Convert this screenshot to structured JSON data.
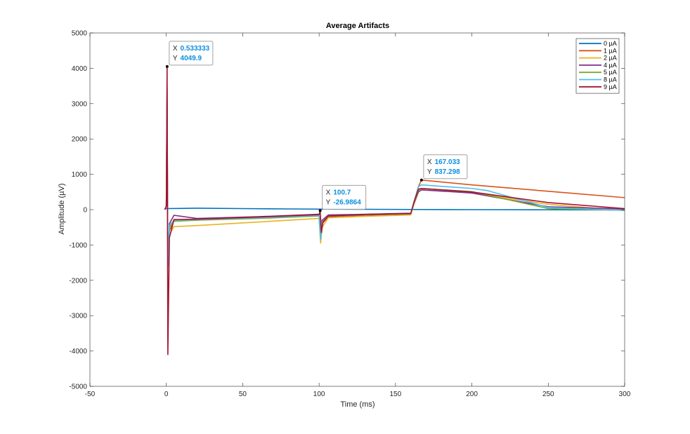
{
  "chart_data": {
    "type": "line",
    "title": "Average Artifacts",
    "xlabel": "Time (ms)",
    "ylabel": "Amplitude (µV)",
    "xlim": [
      -50,
      300
    ],
    "ylim": [
      -5000,
      5000
    ],
    "xticks": [
      "-50",
      "0",
      "50",
      "100",
      "150",
      "200",
      "250",
      "300"
    ],
    "yticks": [
      "-5000",
      "-4000",
      "-3000",
      "-2000",
      "-1000",
      "0",
      "1000",
      "2000",
      "3000",
      "4000",
      "5000"
    ],
    "grid": false,
    "legend_position": "top-right",
    "series": [
      {
        "name": "0 µA",
        "color": "#0072bd",
        "x": [
          -1,
          0,
          20,
          50,
          80,
          100,
          130,
          160,
          200,
          250,
          300
        ],
        "y": [
          20,
          30,
          40,
          30,
          20,
          15,
          10,
          5,
          0,
          -5,
          -10
        ]
      },
      {
        "name": "1 µA",
        "color": "#d95319",
        "x": [
          -1,
          0,
          0.5,
          1,
          2,
          5,
          20,
          60,
          100,
          101,
          102,
          106,
          130,
          160,
          162,
          165,
          167,
          200,
          250,
          300
        ],
        "y": [
          0,
          100,
          3500,
          -1500,
          -600,
          -300,
          -280,
          -220,
          -150,
          -750,
          -400,
          -200,
          -160,
          -120,
          200,
          650,
          837,
          700,
          520,
          340
        ]
      },
      {
        "name": "2 µA",
        "color": "#edb120",
        "x": [
          -1,
          0,
          0.5,
          1,
          2,
          5,
          20,
          60,
          100,
          101,
          102,
          106,
          130,
          160,
          162,
          165,
          167,
          200,
          250,
          300
        ],
        "y": [
          0,
          100,
          2500,
          -1500,
          -700,
          -480,
          -450,
          -350,
          -250,
          -950,
          -500,
          -230,
          -190,
          -150,
          150,
          500,
          560,
          480,
          150,
          -30
        ]
      },
      {
        "name": "4 µA",
        "color": "#7e2f8e",
        "x": [
          -1,
          0,
          0.5,
          1,
          2,
          5,
          20,
          60,
          100,
          101,
          102,
          106,
          130,
          160,
          162,
          165,
          167,
          200,
          250,
          300
        ],
        "y": [
          0,
          100,
          3000,
          -1500,
          -400,
          -160,
          -250,
          -200,
          -130,
          -700,
          -300,
          -150,
          -130,
          -100,
          150,
          500,
          560,
          470,
          80,
          20
        ]
      },
      {
        "name": "5 µA",
        "color": "#77ac30",
        "x": [
          -1,
          0,
          0.5,
          1,
          2,
          5,
          20,
          60,
          100,
          101,
          102,
          106,
          130,
          160,
          162,
          165,
          167,
          200,
          250,
          300
        ],
        "y": [
          0,
          100,
          3200,
          -1600,
          -500,
          -330,
          -300,
          -250,
          -180,
          -800,
          -350,
          -180,
          -150,
          -120,
          150,
          550,
          600,
          510,
          30,
          -20
        ]
      },
      {
        "name": "8 µA",
        "color": "#4dbeee",
        "x": [
          -1,
          0,
          0.5,
          1,
          2,
          5,
          20,
          60,
          100,
          101,
          102,
          106,
          130,
          160,
          162,
          165,
          167,
          200,
          210,
          250,
          300
        ],
        "y": [
          0,
          100,
          3400,
          -1600,
          -450,
          -300,
          -280,
          -230,
          -160,
          -850,
          -350,
          -180,
          -140,
          -110,
          200,
          650,
          700,
          600,
          540,
          60,
          -20
        ]
      },
      {
        "name": "9 µA",
        "color": "#a2142f",
        "x": [
          -1,
          0,
          0.5,
          1,
          2,
          5,
          20,
          60,
          100,
          100.7,
          101.5,
          102.5,
          106,
          130,
          160,
          162,
          165,
          167,
          200,
          250,
          300
        ],
        "y": [
          0,
          100,
          4049.9,
          -4100,
          -800,
          -280,
          -270,
          -210,
          -140,
          -27,
          -650,
          -350,
          -180,
          -140,
          -110,
          200,
          580,
          600,
          500,
          200,
          30
        ]
      }
    ],
    "datatips": [
      {
        "x_label": "X",
        "x_value": "0.533333",
        "y_label": "Y",
        "y_value": "4049.9",
        "x": 0.533333,
        "y": 4049.9
      },
      {
        "x_label": "X",
        "x_value": "100.7",
        "y_label": "Y",
        "y_value": "-26.9864",
        "x": 100.7,
        "y": -26.9864
      },
      {
        "x_label": "X",
        "x_value": "167.033",
        "y_label": "Y",
        "y_value": "837.298",
        "x": 167.033,
        "y": 837.298
      }
    ]
  }
}
